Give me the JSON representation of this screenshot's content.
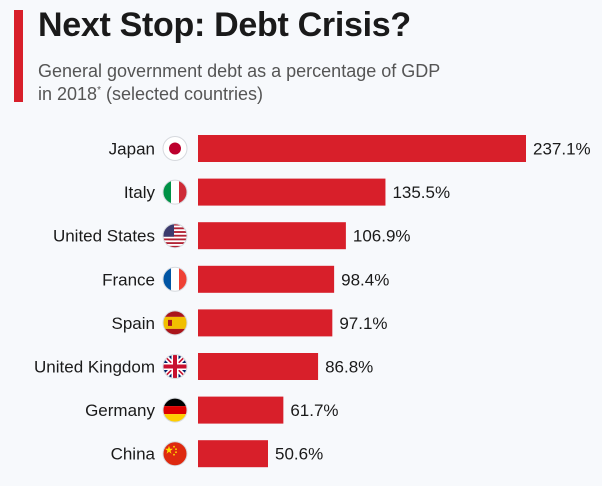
{
  "header": {
    "title": "Next Stop: Debt Crisis?",
    "subtitle_line1": "General government debt as a percentage of GDP",
    "subtitle_line2_pre": "in 2018",
    "subtitle_marker": "*",
    "subtitle_line2_post": " (selected countries)"
  },
  "colors": {
    "accent": "#d81f2a",
    "bar": "#d81f2a"
  },
  "chart_data": {
    "type": "bar",
    "orientation": "horizontal",
    "title": "Next Stop: Debt Crisis?",
    "subtitle": "General government debt as a percentage of GDP in 2018* (selected countries)",
    "unit": "%",
    "categories": [
      "Japan",
      "Italy",
      "United States",
      "France",
      "Spain",
      "United Kingdom",
      "Germany",
      "China"
    ],
    "values": [
      237.1,
      135.5,
      106.9,
      98.4,
      97.1,
      86.8,
      61.7,
      50.6
    ],
    "value_labels": [
      "237.1%",
      "135.5%",
      "106.9%",
      "98.4%",
      "97.1%",
      "86.8%",
      "61.7%",
      "50.6%"
    ],
    "flags": [
      "japan-flag-icon",
      "italy-flag-icon",
      "usa-flag-icon",
      "france-flag-icon",
      "spain-flag-icon",
      "uk-flag-icon",
      "germany-flag-icon",
      "china-flag-icon"
    ],
    "xlim": [
      0,
      237.1
    ]
  }
}
